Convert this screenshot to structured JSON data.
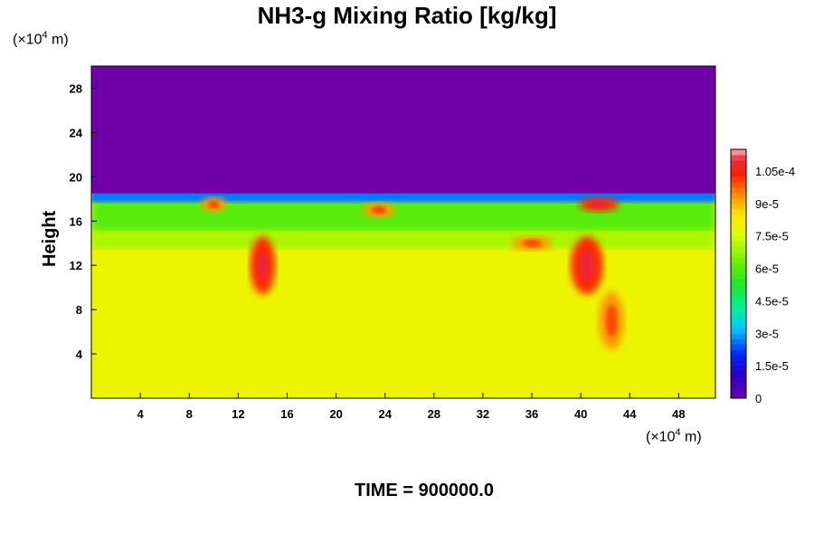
{
  "chart_data": {
    "type": "heatmap",
    "title": "NH3-g Mixing Ratio [kg/kg]",
    "ylabel": "Height",
    "x_unit_base": "(×10",
    "x_unit_exp": "4",
    "x_unit_suffix": " m)",
    "y_unit_base": "(×10",
    "y_unit_exp": "4",
    "y_unit_suffix": " m)",
    "xlim": [
      0,
      51
    ],
    "ylim": [
      0,
      30
    ],
    "x_ticks": [
      4,
      8,
      12,
      16,
      20,
      24,
      28,
      32,
      36,
      40,
      44,
      48
    ],
    "y_ticks": [
      4,
      8,
      12,
      16,
      20,
      24,
      28
    ],
    "colorbar": {
      "min": 0,
      "max": 0.000115,
      "tick_values": [
        0,
        1.5e-05,
        3e-05,
        4.5e-05,
        6e-05,
        7.5e-05,
        9e-05,
        0.000105
      ],
      "tick_labels": [
        "0",
        "1.5e-5",
        "3e-5",
        "4.5e-5",
        "6e-5",
        "7.5e-5",
        "9e-5",
        "1.05e-4"
      ]
    },
    "background_value": 8e-05,
    "upper_layer_value": 0.0,
    "cloud_top_height": 18.5,
    "layers": [
      {
        "y_from": 15,
        "y_to": 18,
        "value": 6e-05
      },
      {
        "y_from": 13.5,
        "y_to": 15,
        "value": 7e-05
      }
    ],
    "features": [
      {
        "x": 14,
        "y": 12,
        "value": 0.00011
      },
      {
        "x": 40.5,
        "y": 12,
        "value": 0.00011
      },
      {
        "x": 41.5,
        "y": 17.5,
        "value": 0.00011
      },
      {
        "x": 10,
        "y": 17.5,
        "value": 0.0001
      },
      {
        "x": 23.5,
        "y": 17,
        "value": 0.0001
      },
      {
        "x": 36,
        "y": 14,
        "value": 0.0001
      },
      {
        "x": 42.5,
        "y": 7,
        "value": 0.0001
      }
    ],
    "colors": {
      "top": "#7000a8",
      "background": "#dcff00",
      "green": "#3af000",
      "red": "#ff2000",
      "pink": "#ffb4b4"
    }
  },
  "time_label": "TIME = 900000.0"
}
